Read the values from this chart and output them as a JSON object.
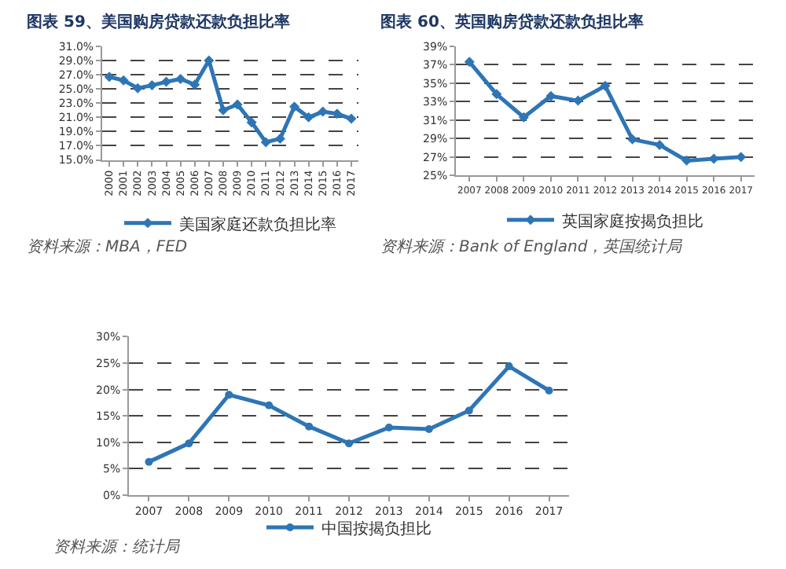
{
  "chart_data": [
    {
      "type": "line",
      "title": "图表 59、美国购房贷款还款负担比率",
      "categories": [
        "2000",
        "2001",
        "2002",
        "2003",
        "2004",
        "2005",
        "2006",
        "2007",
        "2008",
        "2009",
        "2010",
        "2011",
        "2012",
        "2013",
        "2014",
        "2015",
        "2016",
        "2017"
      ],
      "series": [
        {
          "name": "美国家庭还款负担比率",
          "color": "#2e75b6",
          "values": [
            26.7,
            26.2,
            25.1,
            25.5,
            26.0,
            26.4,
            25.6,
            29.0,
            22.0,
            22.8,
            20.3,
            17.5,
            18.0,
            22.5,
            21.0,
            21.8,
            21.5,
            20.8
          ]
        }
      ],
      "ylim": [
        15,
        31
      ],
      "yticks": [
        {
          "value": 15,
          "label": "15.0%"
        },
        {
          "value": 17,
          "label": "17.0%"
        },
        {
          "value": 19,
          "label": "19.0%"
        },
        {
          "value": 21,
          "label": "21.0%"
        },
        {
          "value": 23,
          "label": "23.0%"
        },
        {
          "value": 25,
          "label": "25.0%"
        },
        {
          "value": 27,
          "label": "27.0%"
        },
        {
          "value": 29,
          "label": "29.0%"
        },
        {
          "value": 31,
          "label": "31.0%"
        }
      ],
      "grid": "y",
      "legend": "bottom",
      "marker": "diamond",
      "line_style": "solid",
      "annotations": [
        "资料来源：MBA，FED"
      ]
    },
    {
      "type": "line",
      "title": "图表 60、英国购房贷款还款负担比率",
      "categories": [
        "2007",
        "2008",
        "2009",
        "2010",
        "2011",
        "2012",
        "2013",
        "2014",
        "2015",
        "2016",
        "2017"
      ],
      "series": [
        {
          "name": "英国家庭按揭负担比",
          "color": "#2e75b6",
          "values": [
            37.3,
            33.8,
            31.3,
            33.6,
            33.1,
            34.7,
            28.9,
            28.3,
            26.6,
            26.8,
            27.0
          ]
        }
      ],
      "ylim": [
        25,
        39
      ],
      "yticks": [
        {
          "value": 25,
          "label": "25%"
        },
        {
          "value": 27,
          "label": "27%"
        },
        {
          "value": 29,
          "label": "29%"
        },
        {
          "value": 31,
          "label": "31%"
        },
        {
          "value": 33,
          "label": "33%"
        },
        {
          "value": 35,
          "label": "35%"
        },
        {
          "value": 37,
          "label": "37%"
        },
        {
          "value": 39,
          "label": "39%"
        }
      ],
      "grid": "y",
      "legend": "bottom",
      "marker": "diamond",
      "line_style": "solid",
      "annotations": [
        "资料来源：Bank of England，英国统计局"
      ]
    },
    {
      "type": "line",
      "categories": [
        "2007",
        "2008",
        "2009",
        "2010",
        "2011",
        "2012",
        "2013",
        "2014",
        "2015",
        "2016",
        "2017"
      ],
      "series": [
        {
          "name": "中国按揭负担比",
          "color": "#2e75b6",
          "values": [
            6.3,
            9.8,
            19.0,
            17.0,
            13.0,
            9.8,
            12.8,
            12.5,
            16.0,
            24.4,
            19.8
          ]
        }
      ],
      "ylim": [
        0,
        30
      ],
      "yticks": [
        {
          "value": 0,
          "label": "0%"
        },
        {
          "value": 5,
          "label": "5%"
        },
        {
          "value": 10,
          "label": "10%"
        },
        {
          "value": 15,
          "label": "15%"
        },
        {
          "value": 20,
          "label": "20%"
        },
        {
          "value": 25,
          "label": "25%"
        },
        {
          "value": 30,
          "label": "30%"
        }
      ],
      "grid": "y",
      "legend": "bottom",
      "marker": "circle",
      "line_style": "solid",
      "annotations": [
        "资料来源：统计局"
      ]
    }
  ]
}
